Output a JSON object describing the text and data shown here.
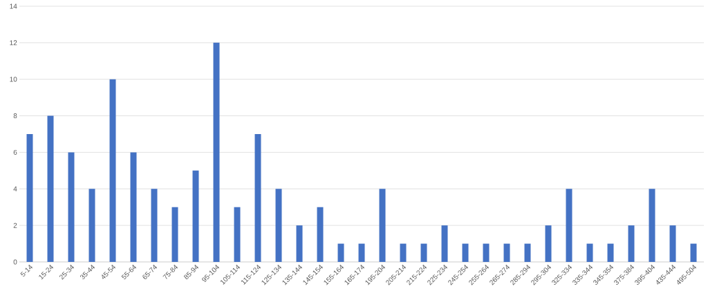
{
  "chart_data": {
    "type": "bar",
    "categories": [
      "5-14",
      "15-24",
      "25-34",
      "35-44",
      "45-54",
      "55-64",
      "65-74",
      "75-84",
      "85-94",
      "95-104",
      "105-114",
      "115-124",
      "125-134",
      "135-144",
      "145-154",
      "155-164",
      "165-174",
      "195-204",
      "205-214",
      "215-224",
      "225-234",
      "245-254",
      "255-264",
      "265-274",
      "285-294",
      "295-304",
      "325-334",
      "335-344",
      "345-354",
      "375-384",
      "395-404",
      "435-444",
      "495-504"
    ],
    "values": [
      7,
      8,
      6,
      4,
      10,
      6,
      4,
      3,
      5,
      12,
      3,
      7,
      4,
      2,
      3,
      1,
      1,
      4,
      1,
      1,
      2,
      1,
      1,
      1,
      1,
      2,
      4,
      1,
      1,
      2,
      4,
      2,
      1
    ],
    "color": "#4472c4",
    "ylim": [
      0,
      14
    ],
    "yticks": [
      0,
      2,
      4,
      6,
      8,
      10,
      12,
      14
    ],
    "grid": "y"
  }
}
